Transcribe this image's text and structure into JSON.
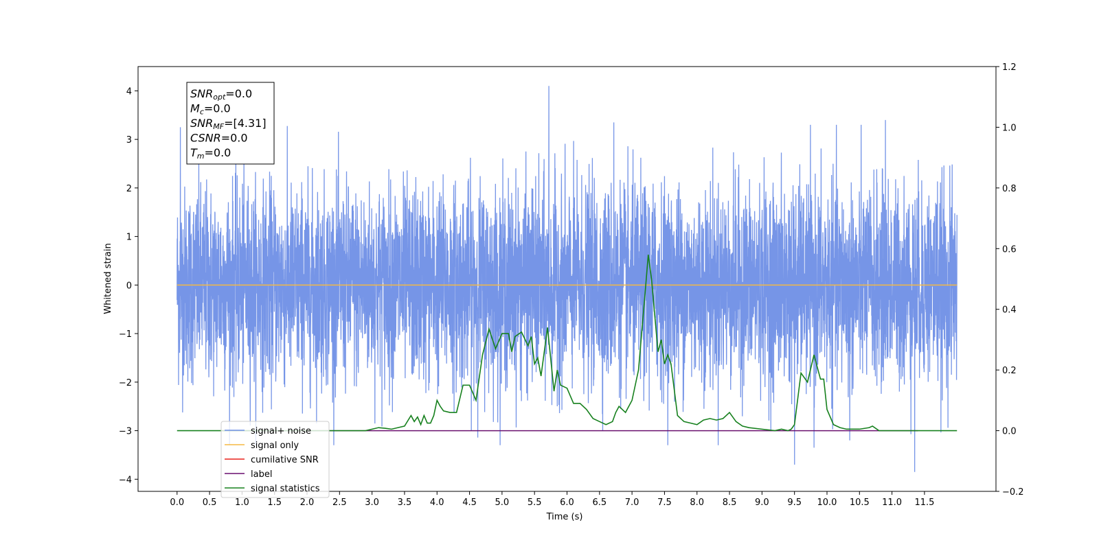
{
  "chart_data": {
    "type": "line",
    "title": "",
    "xlabel": "Time (s)",
    "ylabel": "Whitened strain",
    "xlim": [
      -0.6,
      12.6
    ],
    "ylim": [
      -4.25,
      4.5
    ],
    "y2lim": [
      -0.2,
      1.2
    ],
    "x_ticks": [
      0.0,
      0.5,
      1.0,
      1.5,
      2.0,
      2.5,
      3.0,
      3.5,
      4.0,
      4.5,
      5.0,
      5.5,
      6.0,
      6.5,
      7.0,
      7.5,
      8.0,
      8.5,
      9.0,
      9.5,
      10.0,
      10.5,
      11.0,
      11.5
    ],
    "x_tick_labels": [
      "0.0",
      "0.5",
      "1.0",
      "1.5",
      "2.0",
      "2.5",
      "3.0",
      "3.5",
      "4.0",
      "4.5",
      "5.0",
      "5.5",
      "6.0",
      "6.5",
      "7.0",
      "7.5",
      "8.0",
      "8.5",
      "9.0",
      "9.5",
      "10.0",
      "10.5",
      "11.0",
      "11.5"
    ],
    "y_ticks": [
      4,
      3,
      2,
      1,
      0,
      -1,
      -2,
      -3,
      -4
    ],
    "y_tick_labels": [
      "4",
      "3",
      "2",
      "1",
      "0",
      "−1",
      "−2",
      "−3",
      "−4"
    ],
    "y2_ticks": [
      1.2,
      1.0,
      0.8,
      0.6,
      0.4,
      0.2,
      0.0,
      -0.2
    ],
    "y2_tick_labels": [
      "1.2",
      "1.0",
      "0.8",
      "0.6",
      "0.4",
      "0.2",
      "0.0",
      "−0.2"
    ],
    "grid": false,
    "legend_position": "lower-left",
    "series": [
      {
        "name": "signal+ noise",
        "color": "#6f8fe6",
        "axis": "left",
        "kind": "noise",
        "x_range": [
          0.0,
          12.0
        ],
        "spread": 1.0,
        "peaks": [
          [
            0.05,
            3.25
          ],
          [
            5.72,
            4.1
          ],
          [
            6.72,
            3.35
          ],
          [
            10.9,
            3.4
          ],
          [
            9.5,
            -3.7
          ],
          [
            11.35,
            -3.85
          ],
          [
            9.8,
            -3.35
          ],
          [
            10.35,
            -3.2
          ]
        ]
      },
      {
        "name": "signal only",
        "color": "#f5b942",
        "axis": "left",
        "kind": "flat",
        "x": [
          0.0,
          12.0
        ],
        "y": [
          0.0,
          0.0
        ]
      },
      {
        "name": "cumilative SNR",
        "color": "#e8211a",
        "axis": "right",
        "kind": "hidden",
        "x": [],
        "y": []
      },
      {
        "name": "label",
        "color": "#6a0f6e",
        "axis": "right",
        "kind": "flat",
        "x": [
          0.7,
          11.4
        ],
        "y": [
          0.0,
          0.0
        ]
      },
      {
        "name": "signal statistics",
        "color": "#16801d",
        "axis": "right",
        "kind": "line",
        "x": [
          0.0,
          2.9,
          3.0,
          3.1,
          3.2,
          3.3,
          3.4,
          3.5,
          3.6,
          3.65,
          3.7,
          3.75,
          3.8,
          3.85,
          3.9,
          3.95,
          4.0,
          4.05,
          4.1,
          4.2,
          4.3,
          4.4,
          4.5,
          4.6,
          4.7,
          4.8,
          4.9,
          5.0,
          5.1,
          5.15,
          5.2,
          5.3,
          5.4,
          5.45,
          5.5,
          5.55,
          5.6,
          5.7,
          5.8,
          5.85,
          5.9,
          6.0,
          6.1,
          6.2,
          6.3,
          6.4,
          6.5,
          6.6,
          6.7,
          6.75,
          6.8,
          6.9,
          7.0,
          7.1,
          7.2,
          7.25,
          7.3,
          7.4,
          7.45,
          7.5,
          7.55,
          7.6,
          7.7,
          7.8,
          7.9,
          8.0,
          8.1,
          8.2,
          8.3,
          8.4,
          8.5,
          8.6,
          8.7,
          8.8,
          9.0,
          9.2,
          9.3,
          9.4,
          9.45,
          9.5,
          9.6,
          9.7,
          9.8,
          9.9,
          9.95,
          10.0,
          10.1,
          10.2,
          10.3,
          10.5,
          10.65,
          10.7,
          10.8,
          11.0,
          12.0
        ],
        "y": [
          0.0,
          0.0,
          0.005,
          0.01,
          0.008,
          0.005,
          0.01,
          0.015,
          0.05,
          0.03,
          0.045,
          0.02,
          0.05,
          0.025,
          0.025,
          0.05,
          0.1,
          0.08,
          0.065,
          0.06,
          0.06,
          0.15,
          0.15,
          0.1,
          0.25,
          0.335,
          0.27,
          0.32,
          0.32,
          0.26,
          0.31,
          0.325,
          0.28,
          0.31,
          0.22,
          0.24,
          0.18,
          0.34,
          0.13,
          0.2,
          0.15,
          0.14,
          0.09,
          0.09,
          0.07,
          0.04,
          0.03,
          0.02,
          0.03,
          0.06,
          0.08,
          0.06,
          0.1,
          0.2,
          0.45,
          0.58,
          0.5,
          0.26,
          0.3,
          0.22,
          0.25,
          0.22,
          0.05,
          0.03,
          0.025,
          0.02,
          0.035,
          0.04,
          0.035,
          0.04,
          0.06,
          0.03,
          0.015,
          0.01,
          0.005,
          0.0,
          0.005,
          0.0,
          0.005,
          0.02,
          0.19,
          0.16,
          0.25,
          0.17,
          0.17,
          0.07,
          0.02,
          0.01,
          0.005,
          0.005,
          0.01,
          0.015,
          0.0,
          0.0,
          0.0
        ]
      }
    ],
    "annotations": [
      {
        "base": "SNR",
        "sub": "opt",
        "value": "=0.0"
      },
      {
        "base": "M",
        "sub": "c",
        "value": "=0.0"
      },
      {
        "base": "SNR",
        "sub": "MF",
        "value": "=[4.31]"
      },
      {
        "base": "CSNR",
        "sub": "",
        "value": "=0.0"
      },
      {
        "base": "T",
        "sub": "m",
        "value": "=0.0"
      }
    ]
  }
}
